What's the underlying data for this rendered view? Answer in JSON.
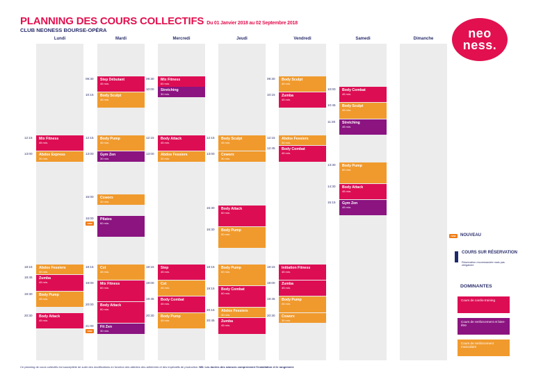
{
  "header": {
    "title": "PLANNING DES COURS COLLECTIFS",
    "period": "Du 01 Janvier 2018 au 02 Septembre 2018",
    "club": "CLUB NEONESS BOURSE-OPÉRA"
  },
  "logo": {
    "line1": "neo",
    "line2": "ness."
  },
  "days": [
    "Lundi",
    "Mardi",
    "Mercredi",
    "Jeudi",
    "Vendredi",
    "Samedi",
    "Dimanche"
  ],
  "colors": {
    "cardio": "#dd0d53",
    "renforcement": "#f09a2d",
    "bienetre": "#8b1480"
  },
  "schedule": [
    {
      "day": "Lundi",
      "classes": [
        {
          "time": "12:15",
          "name": "Mix Fitness",
          "duration": "45 min.",
          "type": "red"
        },
        {
          "time": "13:00",
          "name": "Abdos Express",
          "duration": "30 min.",
          "type": "orange"
        },
        {
          "time": "18:15",
          "name": "Abdos Fessiers",
          "duration": "30 min.",
          "type": "orange"
        },
        {
          "time": "18:45",
          "name": "Zumba",
          "duration": "45 min.",
          "type": "red"
        },
        {
          "time": "19:30",
          "name": "Body Pump",
          "duration": "45 min.",
          "type": "orange"
        },
        {
          "time": "20:30",
          "name": "Body Attack",
          "duration": "45 min.",
          "type": "red"
        }
      ]
    },
    {
      "day": "Mardi",
      "classes": [
        {
          "time": "09:30",
          "name": "Step Débutant",
          "duration": "45 min.",
          "type": "red"
        },
        {
          "time": "10:15",
          "name": "Body Sculpt",
          "duration": "45 min.",
          "type": "orange"
        },
        {
          "time": "12:15",
          "name": "Body Pump",
          "duration": "45 min.",
          "type": "orange"
        },
        {
          "time": "13:00",
          "name": "Gym Zen",
          "duration": "30 min.",
          "type": "purple"
        },
        {
          "time": "15:00",
          "name": "Cxworx",
          "duration": "30 min.",
          "type": "orange"
        },
        {
          "time": "16:00",
          "name": "Pilates",
          "duration": "60 min.",
          "type": "purple",
          "new": true
        },
        {
          "time": "18:15",
          "name": "Cxt",
          "duration": "45 min.",
          "type": "orange"
        },
        {
          "time": "19:00",
          "name": "Mix Fitness",
          "duration": "60 min.",
          "type": "red"
        },
        {
          "time": "20:00",
          "name": "Body Attack",
          "duration": "60 min.",
          "type": "red"
        },
        {
          "time": "21:00",
          "name": "Fit Zen",
          "duration": "30 min.",
          "type": "purple",
          "new": true
        }
      ]
    },
    {
      "day": "Mercredi",
      "classes": [
        {
          "time": "09:30",
          "name": "Mix Fitness",
          "duration": "60 min.",
          "type": "red"
        },
        {
          "time": "10:00",
          "name": "Stretching",
          "duration": "30 min.",
          "type": "purple"
        },
        {
          "time": "12:15",
          "name": "Body Attack",
          "duration": "45 min.",
          "type": "red"
        },
        {
          "time": "13:00",
          "name": "Abdos Fessiers",
          "duration": "30 min.",
          "type": "orange"
        },
        {
          "time": "18:15",
          "name": "Step",
          "duration": "45 min.",
          "type": "red"
        },
        {
          "time": "19:00",
          "name": "Cxt",
          "duration": "45 min.",
          "type": "orange"
        },
        {
          "time": "19:45",
          "name": "Body Combat",
          "duration": "45 min.",
          "type": "red"
        },
        {
          "time": "20:30",
          "name": "Body Pump",
          "duration": "45 min.",
          "type": "orange"
        }
      ]
    },
    {
      "day": "Jeudi",
      "classes": [
        {
          "time": "12:15",
          "name": "Body Sculpt",
          "duration": "45 min.",
          "type": "orange"
        },
        {
          "time": "13:00",
          "name": "Cxworx",
          "duration": "30 min.",
          "type": "orange"
        },
        {
          "time": "15:30",
          "name": "Body Attack",
          "duration": "60 min.",
          "type": "red"
        },
        {
          "time": "16:30",
          "name": "Body Pump",
          "duration": "60 min.",
          "type": "orange"
        },
        {
          "time": "18:15",
          "name": "Body Pump",
          "duration": "60 min.",
          "type": "orange"
        },
        {
          "time": "19:15",
          "name": "Body Combat",
          "duration": "60 min.",
          "type": "red"
        },
        {
          "time": "20:15",
          "name": "Abdos Fessiers",
          "duration": "30 min.",
          "type": "orange"
        },
        {
          "time": "20:45",
          "name": "Zumba",
          "duration": "45 min.",
          "type": "red"
        }
      ]
    },
    {
      "day": "Vendredi",
      "classes": [
        {
          "time": "09:30",
          "name": "Body Sculpt",
          "duration": "45 min.",
          "type": "orange"
        },
        {
          "time": "10:15",
          "name": "Zumba",
          "duration": "45 min.",
          "type": "red"
        },
        {
          "time": "12:15",
          "name": "Abdos Fessiers",
          "duration": "30 min.",
          "type": "orange"
        },
        {
          "time": "12:45",
          "name": "Body Combat",
          "duration": "45 min.",
          "type": "red"
        },
        {
          "time": "18:15",
          "name": "Initiation Fitness",
          "duration": "45 min.",
          "type": "red"
        },
        {
          "time": "19:00",
          "name": "Zumba",
          "duration": "45 min.",
          "type": "red"
        },
        {
          "time": "19:45",
          "name": "Body Pump",
          "duration": "45 min.",
          "type": "orange"
        },
        {
          "time": "20:30",
          "name": "Cxworx",
          "duration": "30 min.",
          "type": "orange"
        }
      ]
    },
    {
      "day": "Samedi",
      "classes": [
        {
          "time": "10:00",
          "name": "Body Combat",
          "duration": "45 min.",
          "type": "red"
        },
        {
          "time": "10:45",
          "name": "Body Sculpt",
          "duration": "45 min.",
          "type": "orange"
        },
        {
          "time": "11:30",
          "name": "Stretching",
          "duration": "45 min.",
          "type": "purple"
        },
        {
          "time": "13:30",
          "name": "Body Pump",
          "duration": "60 min.",
          "type": "orange"
        },
        {
          "time": "14:30",
          "name": "Body Attack",
          "duration": "45 min.",
          "type": "red"
        },
        {
          "time": "15:15",
          "name": "Gym Zen",
          "duration": "45 min.",
          "type": "purple"
        }
      ]
    },
    {
      "day": "Dimanche",
      "classes": []
    }
  ],
  "legend": {
    "new_tag": "new",
    "new_label": "NOUVEAU",
    "reservation_title": "COURS SUR RÉSERVATION",
    "reservation_sub": "Réservation recommandée mais pas obligatoire",
    "dominantes": "DOMINANTES",
    "items": [
      {
        "label": "Cours de cardio-training",
        "type": "red"
      },
      {
        "label": "Cours de renforcement et bien-être",
        "type": "purple"
      },
      {
        "label": "Cours de renforcement musculaire",
        "type": "orange"
      }
    ]
  },
  "footer": {
    "text": "Ce planning de cours collectifs est susceptible de subir des modifications en fonction des attentes des adhérents et des impératifs de production. ",
    "bold": "NB: Les durées des séances comprennent l'installation et le rangement."
  }
}
